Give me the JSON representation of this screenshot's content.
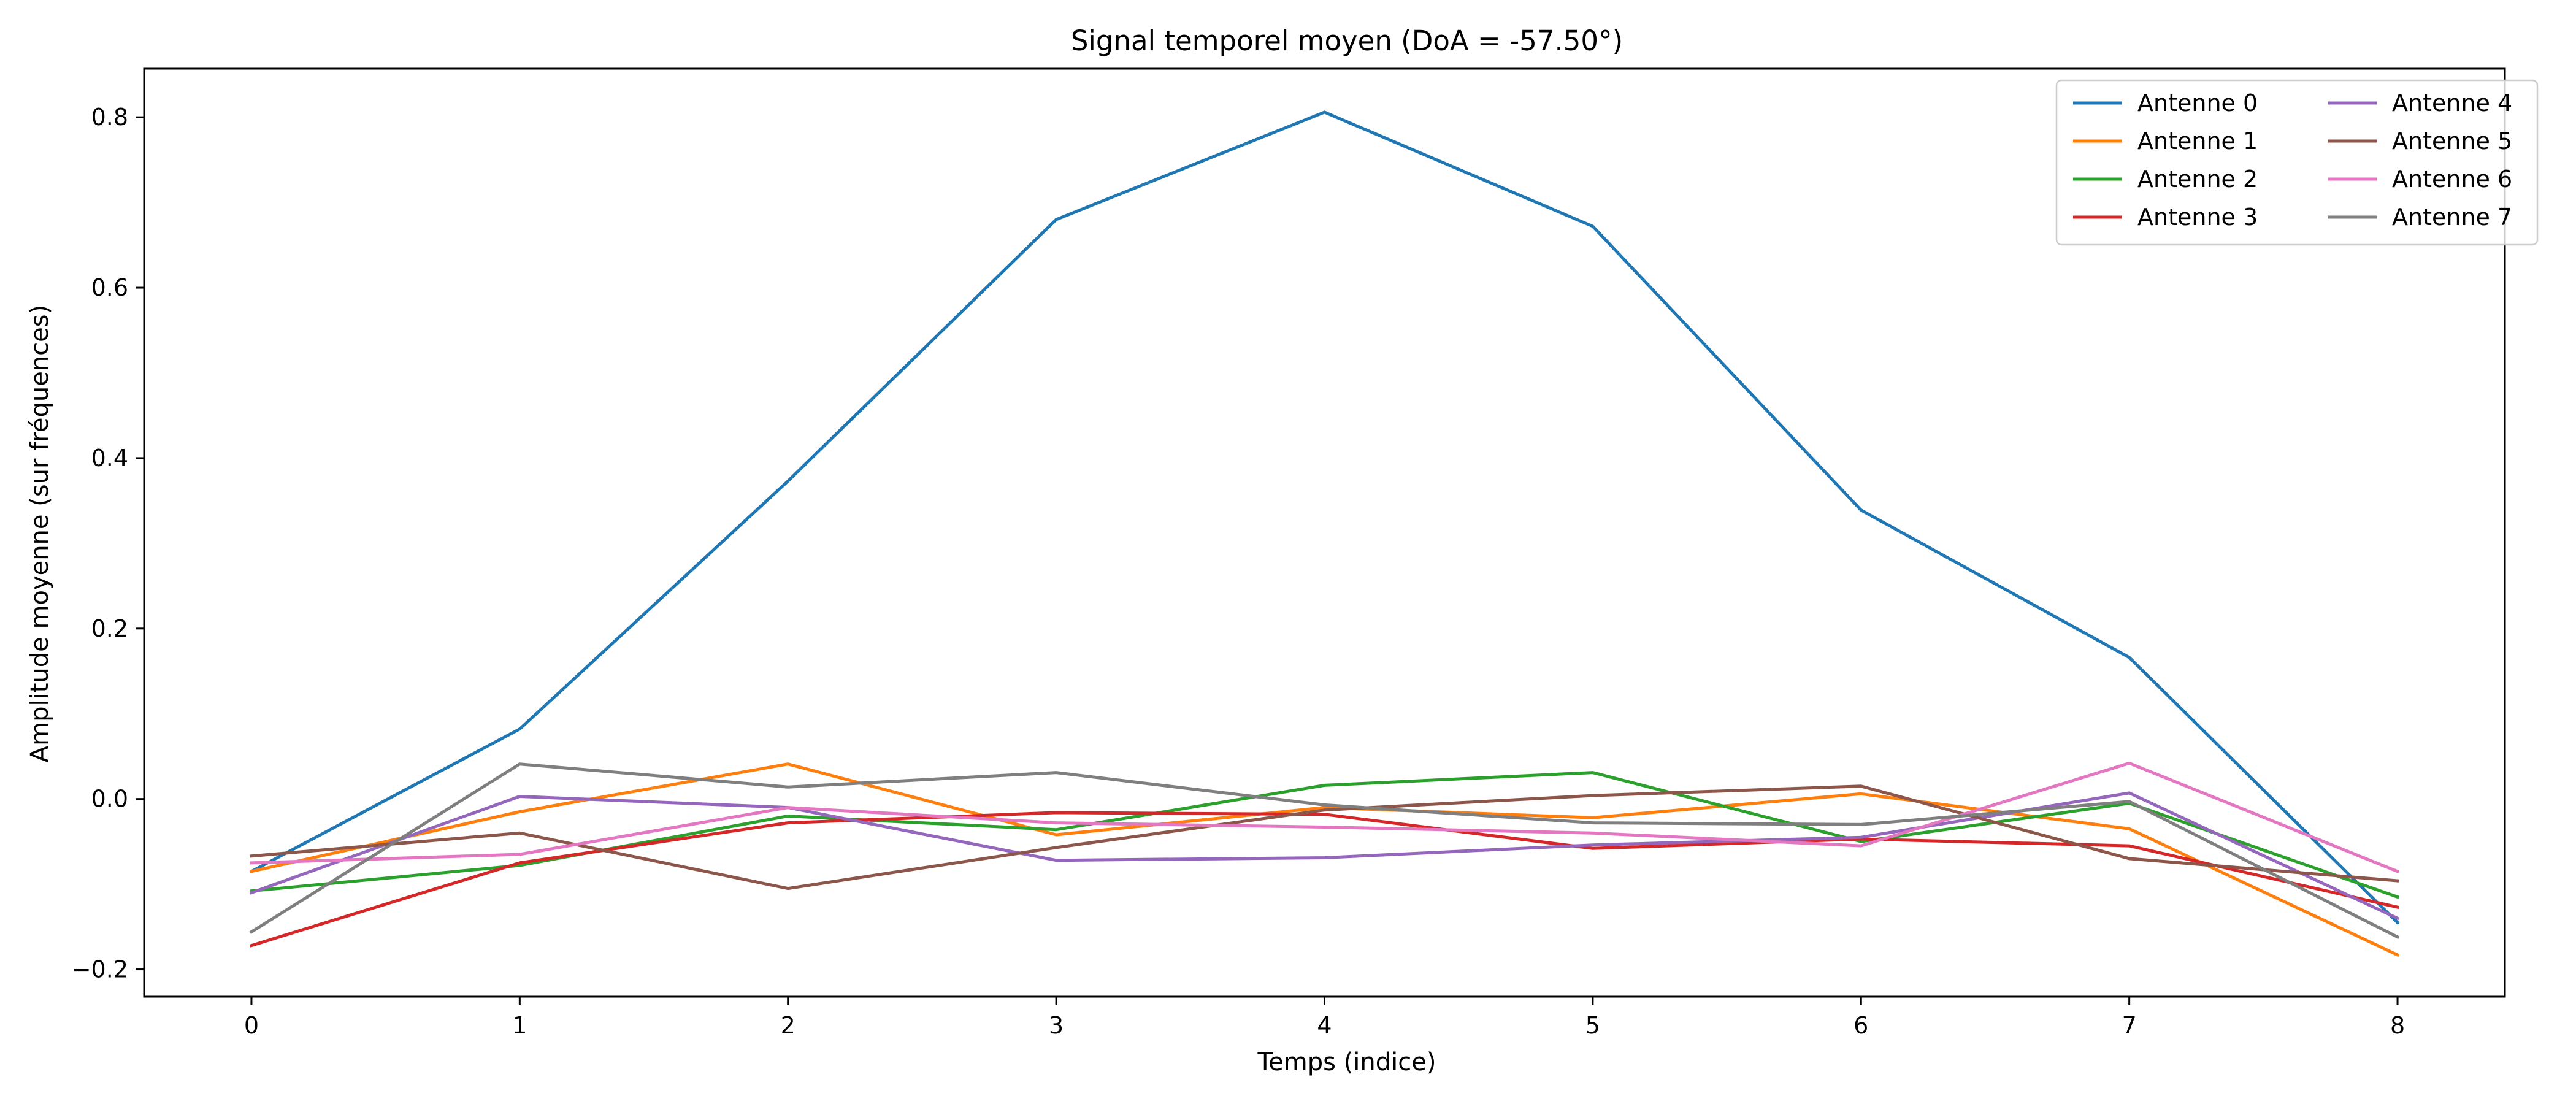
{
  "chart_data": {
    "type": "line",
    "title": "Signal temporel moyen (DoA = -57.50°)",
    "xlabel": "Temps (indice)",
    "ylabel": "Amplitude moyenne (sur fréquences)",
    "x": [
      0,
      1,
      2,
      3,
      4,
      5,
      6,
      7,
      8
    ],
    "xlim": [
      -0.4,
      8.4
    ],
    "ylim": [
      -0.232,
      0.857
    ],
    "xticks": [
      0,
      1,
      2,
      3,
      4,
      5,
      6,
      7,
      8
    ],
    "yticks": [
      -0.2,
      0.0,
      0.2,
      0.4,
      0.6,
      0.8
    ],
    "ytick_labels": [
      "−0.2",
      "0.0",
      "0.2",
      "0.4",
      "0.6",
      "0.8"
    ],
    "grid": false,
    "legend": {
      "placement": "top-right",
      "columns": 2
    },
    "series": [
      {
        "name": "Antenne 0",
        "color": "#1f77b4",
        "values": [
          -0.085,
          0.082,
          0.373,
          0.68,
          0.806,
          0.672,
          0.339,
          0.166,
          -0.145
        ]
      },
      {
        "name": "Antenne 1",
        "color": "#ff7f0e",
        "values": [
          -0.085,
          -0.015,
          0.041,
          -0.042,
          -0.01,
          -0.022,
          0.006,
          -0.035,
          -0.183
        ]
      },
      {
        "name": "Antenne 2",
        "color": "#2ca02c",
        "values": [
          -0.108,
          -0.078,
          -0.02,
          -0.036,
          0.016,
          0.031,
          -0.05,
          -0.005,
          -0.115
        ]
      },
      {
        "name": "Antenne 3",
        "color": "#d62728",
        "values": [
          -0.172,
          -0.075,
          -0.028,
          -0.016,
          -0.018,
          -0.058,
          -0.047,
          -0.055,
          -0.127
        ]
      },
      {
        "name": "Antenne 4",
        "color": "#9467bd",
        "values": [
          -0.11,
          0.003,
          -0.01,
          -0.072,
          -0.069,
          -0.054,
          -0.045,
          0.007,
          -0.14
        ]
      },
      {
        "name": "Antenne 5",
        "color": "#8c564b",
        "values": [
          -0.067,
          -0.04,
          -0.105,
          -0.057,
          -0.013,
          0.004,
          0.015,
          -0.07,
          -0.096
        ]
      },
      {
        "name": "Antenne 6",
        "color": "#e377c2",
        "values": [
          -0.075,
          -0.065,
          -0.01,
          -0.028,
          -0.033,
          -0.04,
          -0.055,
          0.042,
          -0.085
        ]
      },
      {
        "name": "Antenne 7",
        "color": "#7f7f7f",
        "values": [
          -0.156,
          0.041,
          0.014,
          0.031,
          -0.007,
          -0.028,
          -0.03,
          -0.003,
          -0.162
        ]
      }
    ]
  }
}
